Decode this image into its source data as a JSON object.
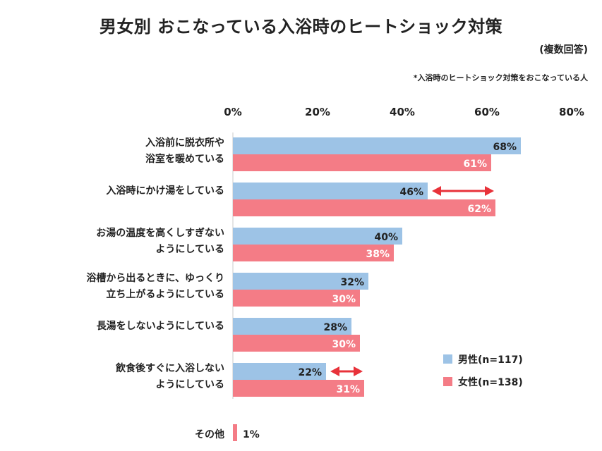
{
  "chart_data": {
    "type": "bar",
    "orientation": "horizontal",
    "title": "男女別  おこなっている入浴時のヒートショック対策",
    "subtitle": "(複数回答)",
    "note": "*入浴時のヒートショック対策をおこなっている人",
    "xlim": [
      0,
      80
    ],
    "ticks": [
      "0%",
      "20%",
      "40%",
      "60%",
      "80%"
    ],
    "tick_values": [
      0,
      20,
      40,
      60,
      80
    ],
    "categories": [
      [
        "入浴前に脱衣所や",
        "浴室を暖めている"
      ],
      [
        "入浴時にかけ湯をしている"
      ],
      [
        "お湯の温度を高くしすぎない",
        "ようにしている"
      ],
      [
        "浴槽から出るときに、ゆっくり",
        "立ち上がるようにしている"
      ],
      [
        "長湯をしないようにしている"
      ],
      [
        "飲食後すぐに入浴しない",
        "ようにしている"
      ]
    ],
    "series": [
      {
        "name": "男性(n=117)",
        "color": "#9dc3e6",
        "values": [
          68,
          46,
          40,
          32,
          28,
          22
        ],
        "labels": [
          "68%",
          "46%",
          "40%",
          "32%",
          "28%",
          "22%"
        ]
      },
      {
        "name": "女性(n=138)",
        "color": "#f47c86",
        "values": [
          61,
          62,
          38,
          30,
          30,
          31
        ],
        "labels": [
          "61%",
          "62%",
          "38%",
          "30%",
          "30%",
          "31%"
        ]
      }
    ],
    "other": {
      "label": "その他",
      "value": 1,
      "value_label": "1%",
      "color": "#f47c86"
    },
    "arrow_color": "#e8323a",
    "arrows_on": [
      1,
      5
    ],
    "legend_position": "right"
  }
}
